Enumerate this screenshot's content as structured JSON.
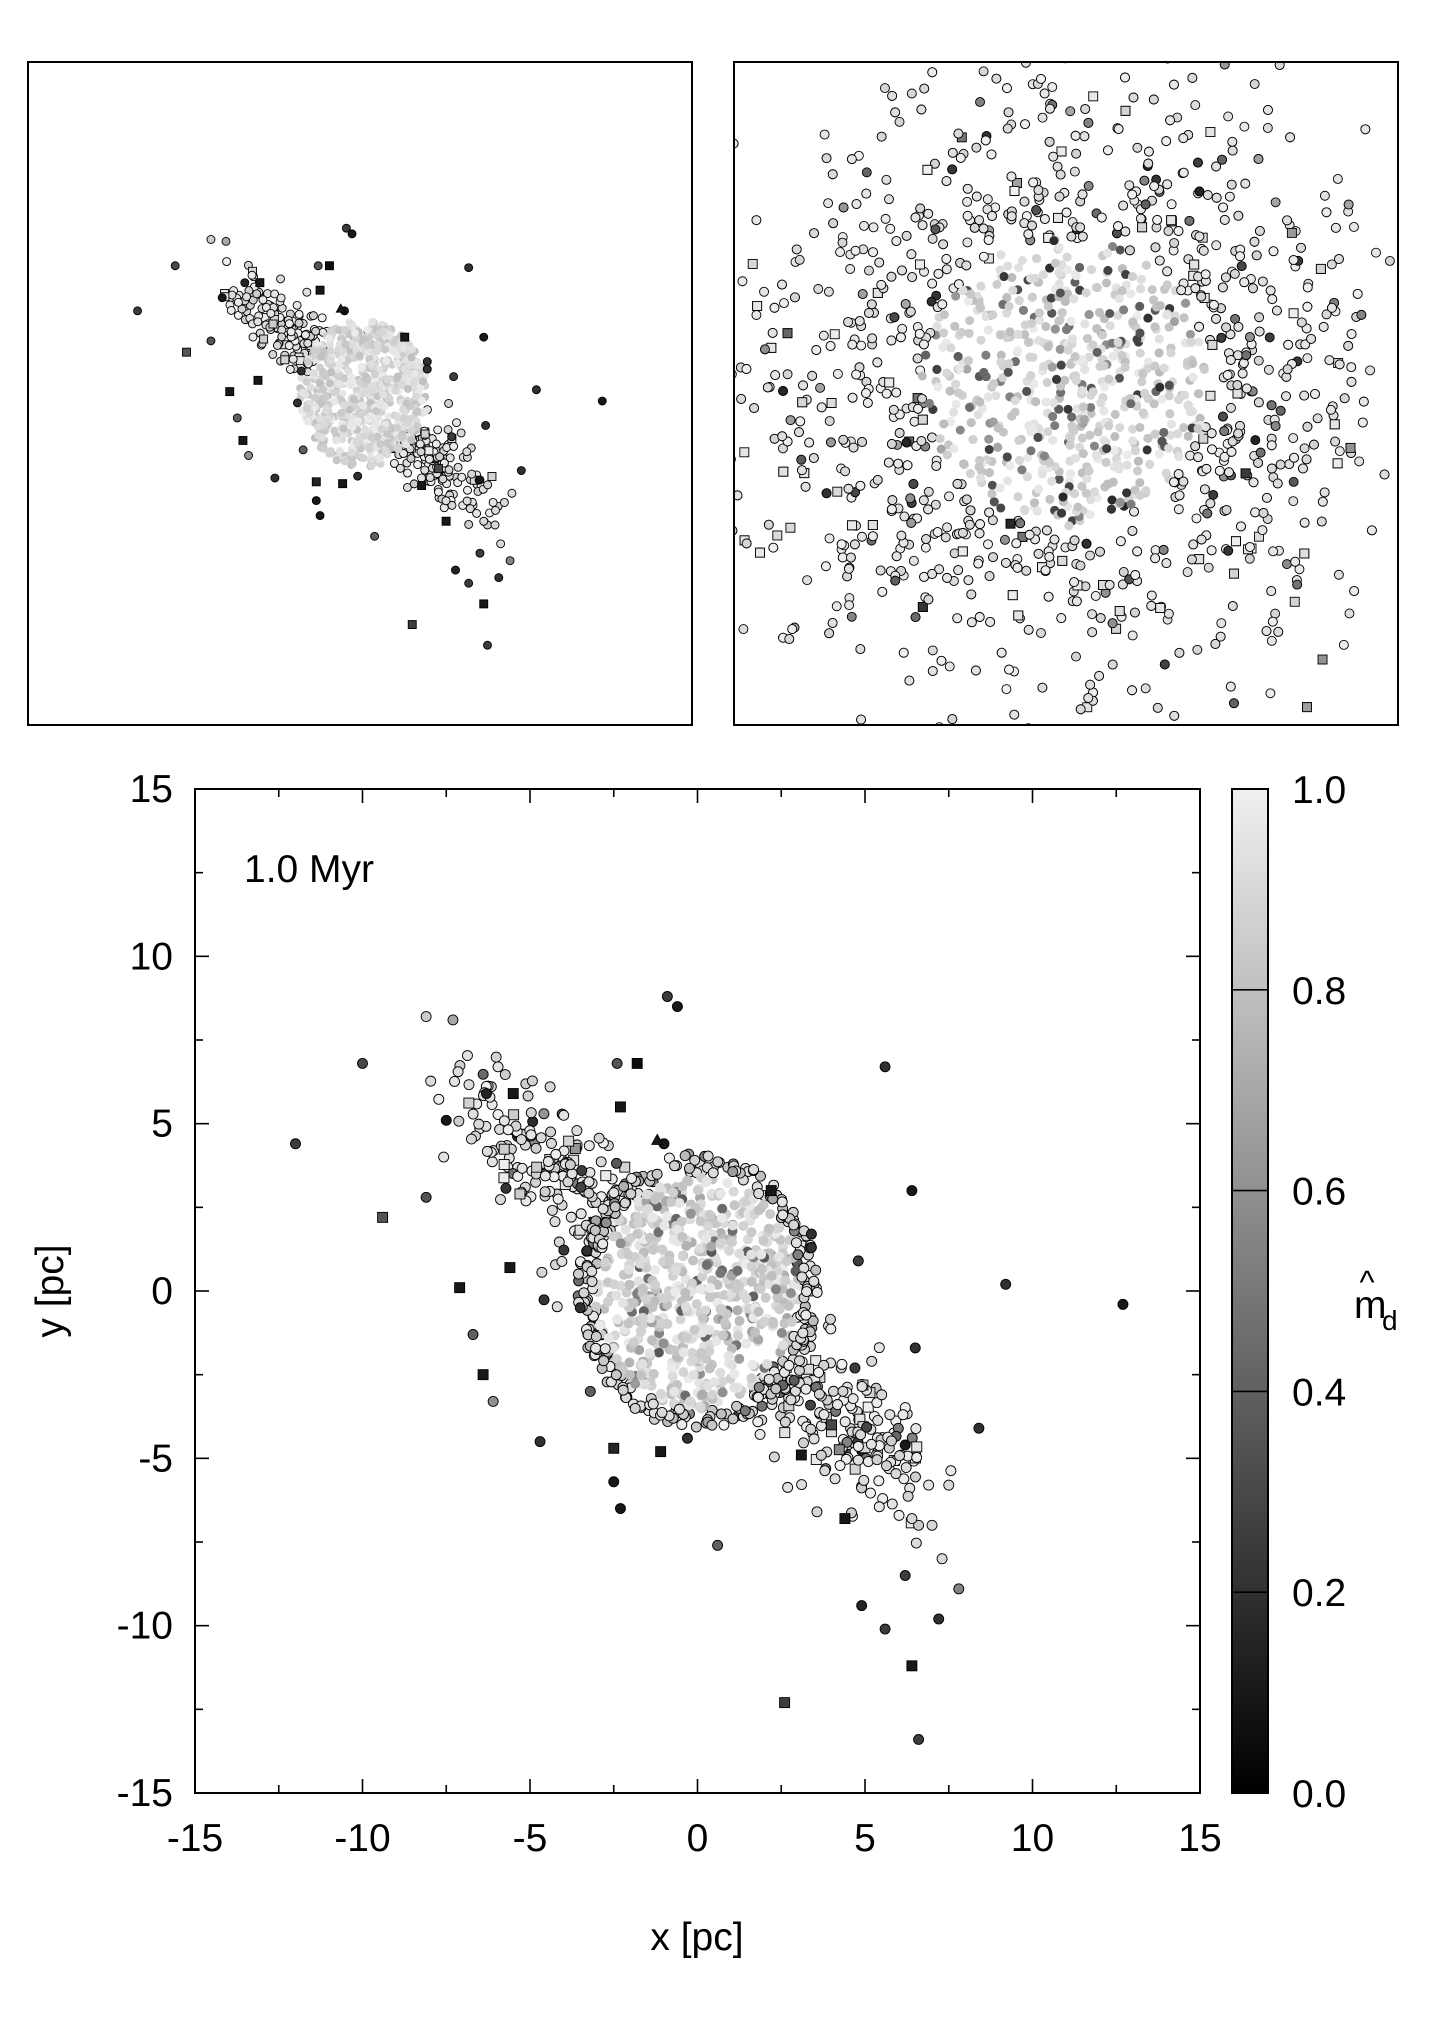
{
  "chart_data": [
    {
      "panel": "main",
      "type": "scatter",
      "title": "",
      "annotation": "1.0 Myr",
      "xlabel": "x [pc]",
      "ylabel": "y [pc]",
      "xlim": [
        -15,
        15
      ],
      "ylim": [
        -15,
        15
      ],
      "xticks": [
        -15,
        -10,
        -5,
        0,
        5,
        10,
        15
      ],
      "yticks": [
        -15,
        -10,
        -5,
        0,
        5,
        10,
        15
      ],
      "grid": false,
      "colorbar": {
        "label_main": "m",
        "label_sub": "d",
        "label_hat": "^",
        "range": [
          0,
          1
        ],
        "ticks": [
          0.0,
          0.2,
          0.4,
          0.6,
          0.8,
          1.0
        ],
        "tick_labels": [
          "0.0",
          "0.2",
          "0.4",
          "0.6",
          "0.8",
          "1.0"
        ],
        "colormap": "grayscale black-to-white"
      },
      "core": {
        "center": [
          0,
          0
        ],
        "radius": 3.6,
        "approx_count": 900,
        "typical_value": 0.85
      },
      "filament": {
        "start": [
          -6.5,
          5.5
        ],
        "end": [
          6,
          -5.5
        ],
        "approx_count": 600,
        "typical_value": 0.9
      },
      "points": [
        {
          "x": -12.0,
          "y": 4.4,
          "v": 0.25,
          "m": "circle"
        },
        {
          "x": -10.0,
          "y": 6.8,
          "v": 0.3,
          "m": "circle"
        },
        {
          "x": -9.4,
          "y": 2.2,
          "v": 0.35,
          "m": "square"
        },
        {
          "x": -8.1,
          "y": 8.2,
          "v": 0.85,
          "m": "circle"
        },
        {
          "x": -7.3,
          "y": 8.1,
          "v": 0.7,
          "m": "circle"
        },
        {
          "x": -8.1,
          "y": 2.8,
          "v": 0.35,
          "m": "circle"
        },
        {
          "x": -7.5,
          "y": 5.1,
          "v": 0.1,
          "m": "circle"
        },
        {
          "x": -7.1,
          "y": 0.1,
          "v": 0.1,
          "m": "square"
        },
        {
          "x": -6.7,
          "y": -1.3,
          "v": 0.4,
          "m": "circle"
        },
        {
          "x": -6.4,
          "y": -2.5,
          "v": 0.1,
          "m": "square"
        },
        {
          "x": -6.1,
          "y": -3.3,
          "v": 0.6,
          "m": "circle"
        },
        {
          "x": -6.3,
          "y": 5.9,
          "v": 0.15,
          "m": "circle"
        },
        {
          "x": -5.5,
          "y": 5.9,
          "v": 0.1,
          "m": "square"
        },
        {
          "x": -5.6,
          "y": 0.7,
          "v": 0.1,
          "m": "square"
        },
        {
          "x": -4.7,
          "y": -4.5,
          "v": 0.2,
          "m": "circle"
        },
        {
          "x": -2.4,
          "y": 6.8,
          "v": 0.35,
          "m": "circle"
        },
        {
          "x": -1.8,
          "y": 6.8,
          "v": 0.05,
          "m": "square"
        },
        {
          "x": -0.9,
          "y": 8.8,
          "v": 0.25,
          "m": "circle"
        },
        {
          "x": -0.6,
          "y": 8.5,
          "v": 0.1,
          "m": "circle"
        },
        {
          "x": -1.0,
          "y": 4.4,
          "v": 0.1,
          "m": "circle"
        },
        {
          "x": -1.2,
          "y": 4.5,
          "v": 0.1,
          "m": "triangle"
        },
        {
          "x": -2.3,
          "y": 5.5,
          "v": 0.1,
          "m": "square"
        },
        {
          "x": -2.5,
          "y": -5.7,
          "v": 0.1,
          "m": "circle"
        },
        {
          "x": -2.3,
          "y": -6.5,
          "v": 0.1,
          "m": "circle"
        },
        {
          "x": -2.5,
          "y": -4.7,
          "v": 0.15,
          "m": "square"
        },
        {
          "x": -1.1,
          "y": -4.8,
          "v": 0.1,
          "m": "square"
        },
        {
          "x": -0.3,
          "y": -4.4,
          "v": 0.2,
          "m": "circle"
        },
        {
          "x": 0.6,
          "y": -7.6,
          "v": 0.4,
          "m": "circle"
        },
        {
          "x": 2.2,
          "y": 3.0,
          "v": 0.1,
          "m": "square"
        },
        {
          "x": 3.4,
          "y": 1.7,
          "v": 0.2,
          "m": "circle"
        },
        {
          "x": 3.4,
          "y": 1.3,
          "v": 0.2,
          "m": "circle"
        },
        {
          "x": 4.8,
          "y": 0.9,
          "v": 0.25,
          "m": "circle"
        },
        {
          "x": 4.7,
          "y": -2.3,
          "v": 0.25,
          "m": "circle"
        },
        {
          "x": 4.4,
          "y": -6.8,
          "v": 0.1,
          "m": "square"
        },
        {
          "x": 5.6,
          "y": 6.7,
          "v": 0.2,
          "m": "circle"
        },
        {
          "x": 6.4,
          "y": 3.0,
          "v": 0.1,
          "m": "circle"
        },
        {
          "x": 6.5,
          "y": -1.7,
          "v": 0.2,
          "m": "circle"
        },
        {
          "x": 6.2,
          "y": -4.6,
          "v": 0.1,
          "m": "circle"
        },
        {
          "x": 6.2,
          "y": -8.5,
          "v": 0.25,
          "m": "circle"
        },
        {
          "x": 6.6,
          "y": -7.0,
          "v": 0.85,
          "m": "circle"
        },
        {
          "x": 6.4,
          "y": -6.8,
          "v": 0.9,
          "m": "circle"
        },
        {
          "x": 6.9,
          "y": -5.8,
          "v": 0.95,
          "m": "circle"
        },
        {
          "x": 7.0,
          "y": -7.0,
          "v": 0.9,
          "m": "circle"
        },
        {
          "x": 7.5,
          "y": -5.8,
          "v": 0.9,
          "m": "circle"
        },
        {
          "x": 7.3,
          "y": -8.0,
          "v": 0.9,
          "m": "circle"
        },
        {
          "x": 7.8,
          "y": -8.9,
          "v": 0.55,
          "m": "circle"
        },
        {
          "x": 4.9,
          "y": -9.4,
          "v": 0.15,
          "m": "circle"
        },
        {
          "x": 5.6,
          "y": -10.1,
          "v": 0.25,
          "m": "circle"
        },
        {
          "x": 7.2,
          "y": -9.8,
          "v": 0.2,
          "m": "circle"
        },
        {
          "x": 6.4,
          "y": -11.2,
          "v": 0.1,
          "m": "square"
        },
        {
          "x": 2.6,
          "y": -12.3,
          "v": 0.25,
          "m": "square"
        },
        {
          "x": 6.6,
          "y": -13.4,
          "v": 0.25,
          "m": "circle"
        },
        {
          "x": 8.4,
          "y": -4.1,
          "v": 0.2,
          "m": "circle"
        },
        {
          "x": 9.2,
          "y": 0.2,
          "v": 0.2,
          "m": "circle"
        },
        {
          "x": 12.7,
          "y": -0.4,
          "v": 0.1,
          "m": "circle"
        },
        {
          "x": 5.2,
          "y": -2.1,
          "v": 0.9,
          "m": "circle"
        },
        {
          "x": 5.5,
          "y": -3.1,
          "v": 0.9,
          "m": "circle"
        },
        {
          "x": 4.0,
          "y": -4.0,
          "v": 0.3,
          "m": "square"
        },
        {
          "x": 3.1,
          "y": -4.9,
          "v": 0.1,
          "m": "square"
        },
        {
          "x": -4.8,
          "y": 3.7,
          "v": 0.85,
          "m": "square"
        },
        {
          "x": -5.3,
          "y": 2.9,
          "v": 0.85,
          "m": "square"
        },
        {
          "x": -4.4,
          "y": 6.1,
          "v": 0.9,
          "m": "circle"
        },
        {
          "x": -3.3,
          "y": 1.2,
          "v": 0.2,
          "m": "circle"
        },
        {
          "x": -3.5,
          "y": -0.5,
          "v": 0.2,
          "m": "circle"
        },
        {
          "x": -3.2,
          "y": -3.0,
          "v": 0.4,
          "m": "circle"
        }
      ]
    },
    {
      "panel": "inset-left",
      "type": "scatter",
      "title": "",
      "description": "small-scale view of the same cluster (no axes shown)"
    },
    {
      "panel": "inset-right",
      "type": "scatter",
      "title": "",
      "description": "zoomed-in view of the cluster core (no axes shown)"
    }
  ]
}
